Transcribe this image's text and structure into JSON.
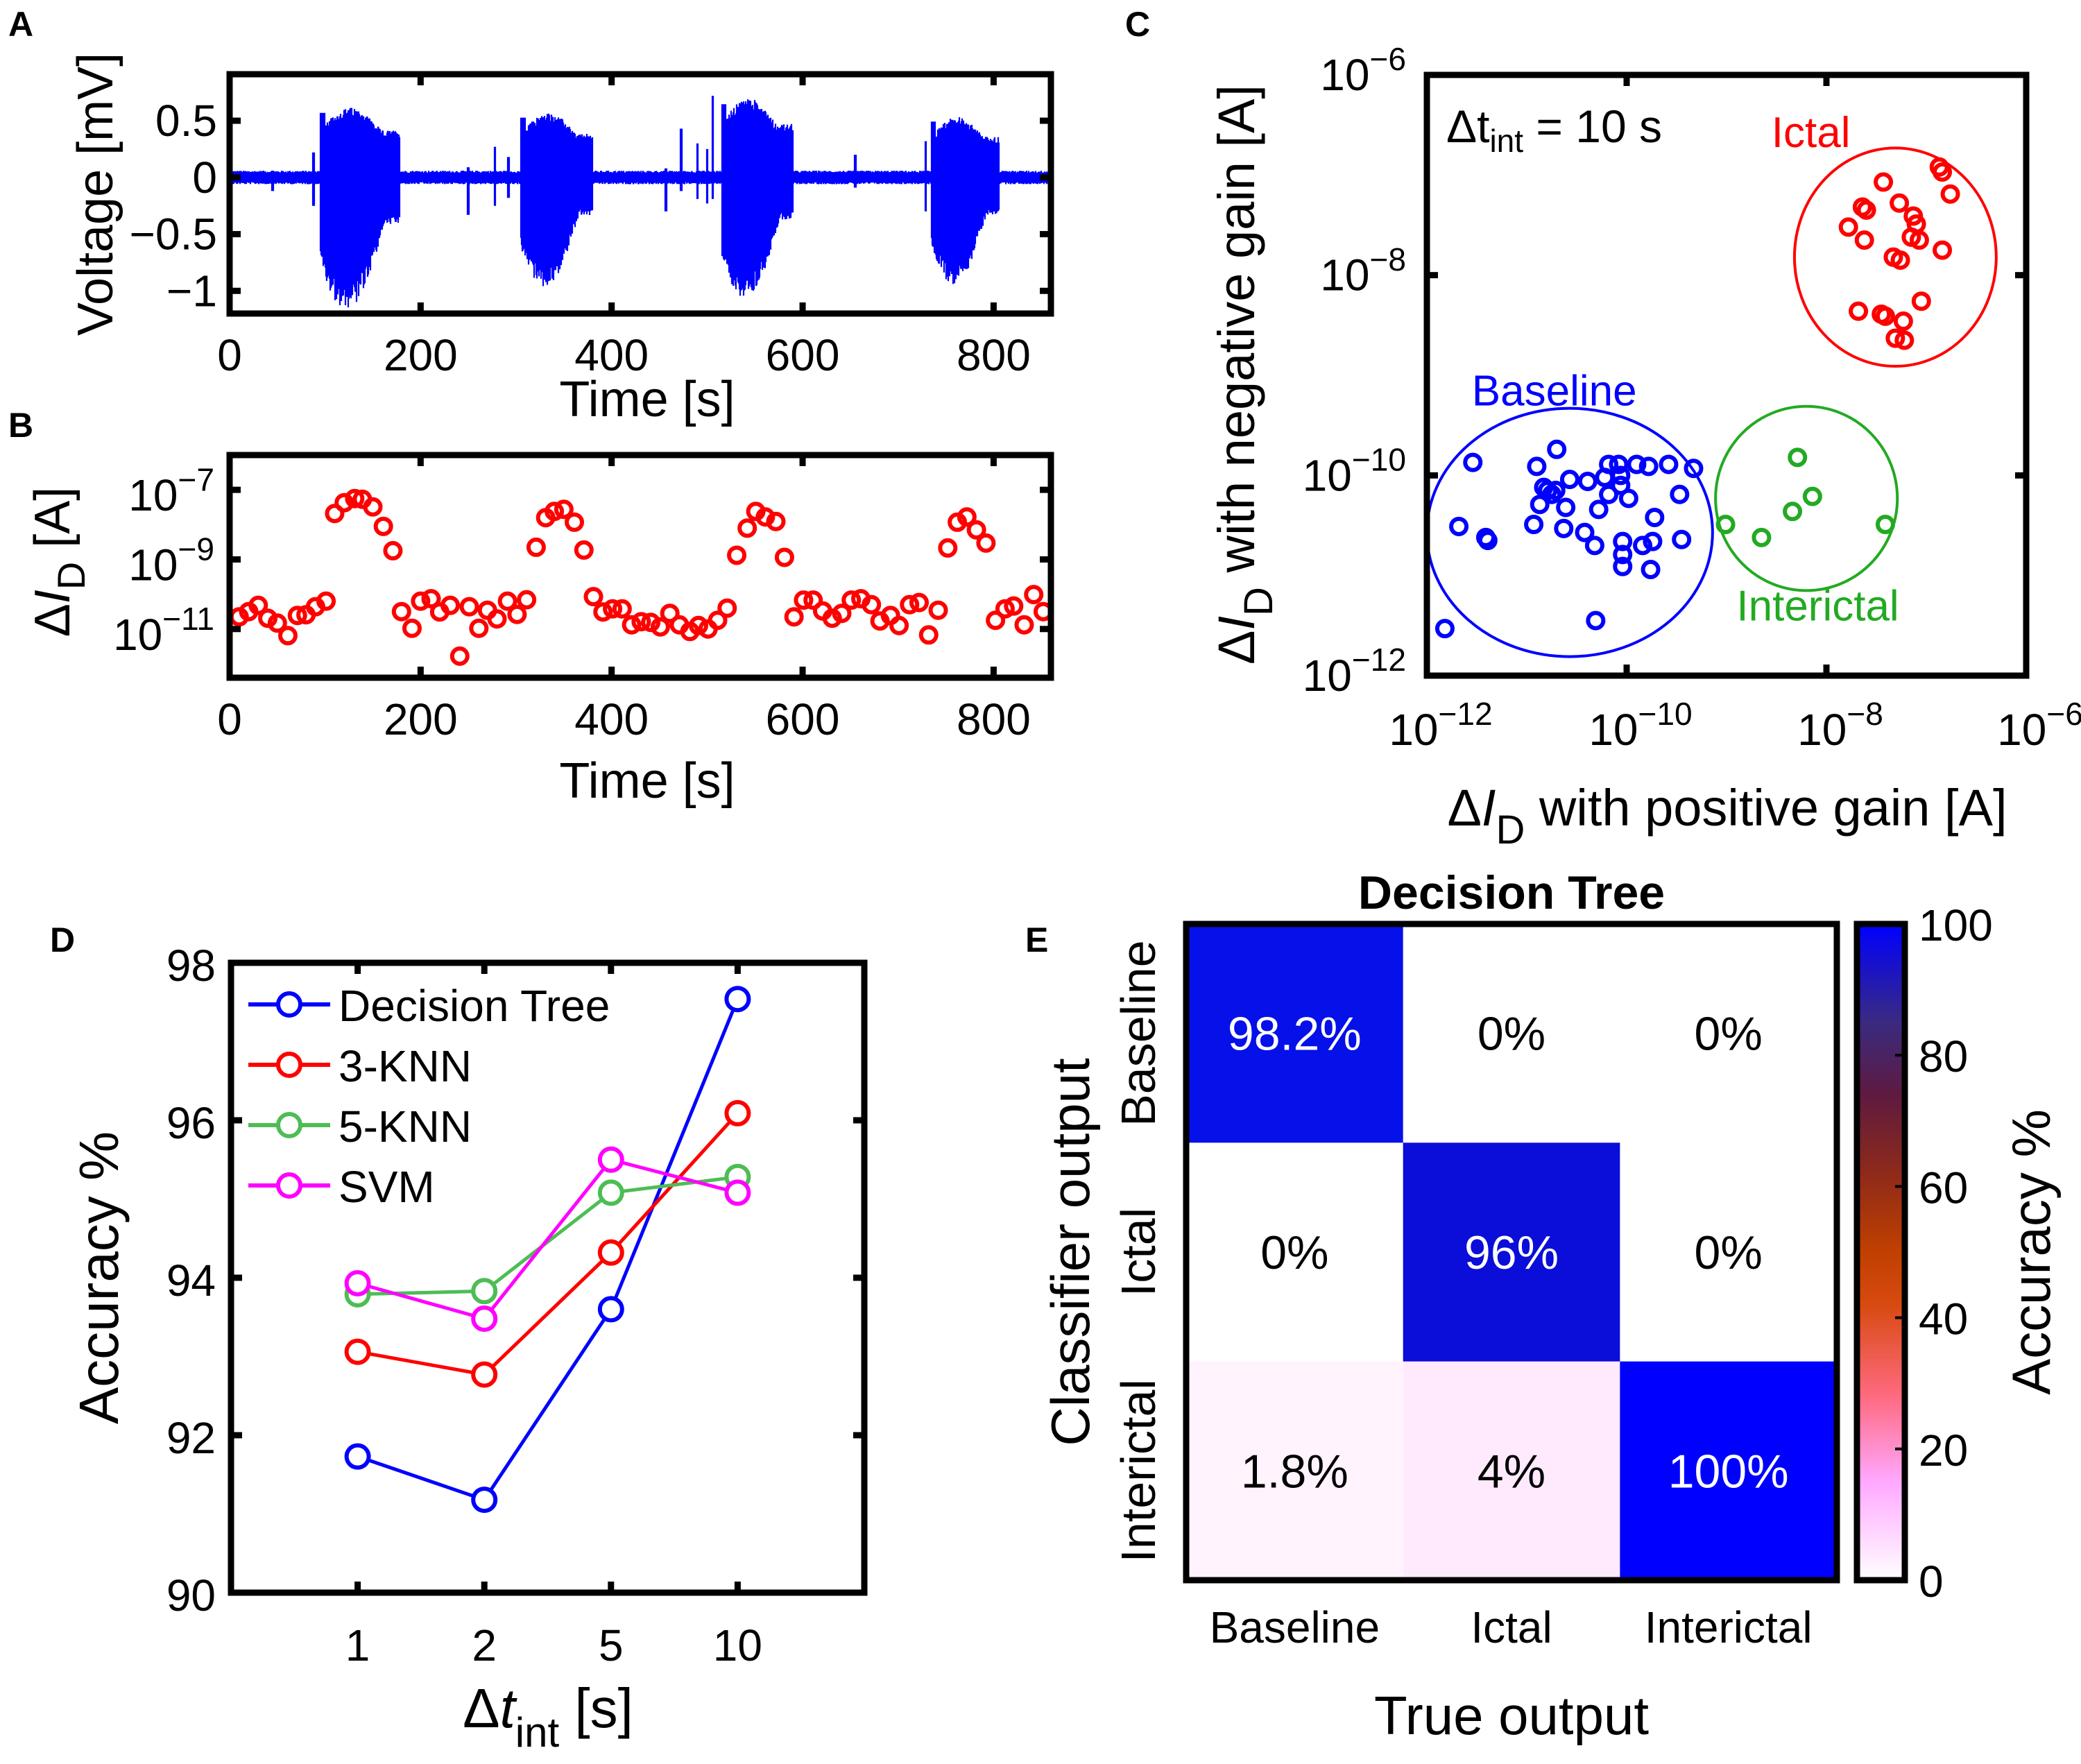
{
  "figure": {
    "panel_labels": [
      "A",
      "B",
      "C",
      "D",
      "E"
    ]
  },
  "chart_data": [
    {
      "id": "A",
      "type": "line",
      "title": "",
      "xlabel": "Time [s]",
      "ylabel": "Voltage [mV]",
      "xlim": [
        0,
        860
      ],
      "ylim": [
        -1.2,
        0.91
      ],
      "xticks": [
        0,
        200,
        400,
        600,
        800
      ],
      "xtick_labels": [
        "0",
        "200",
        "400",
        "600",
        "800"
      ],
      "yticks": [
        0.5,
        0,
        -0.5,
        -1
      ],
      "ytick_labels": [
        "0.5",
        "0",
        "−0.5",
        "−1"
      ],
      "color": "#0000ff",
      "description": "Continuous voltage trace; baseline noise ~±0.05 mV with four ictal bursts",
      "baseline_amplitude": 0.05,
      "bursts": [
        {
          "start": 95,
          "end": 178,
          "max": 0.67,
          "min": -1.12
        },
        {
          "start": 305,
          "end": 380,
          "max": 0.62,
          "min": -0.92
        },
        {
          "start": 515,
          "end": 590,
          "max": 0.76,
          "min": -1.02
        },
        {
          "start": 735,
          "end": 806,
          "max": 0.58,
          "min": -0.9
        }
      ],
      "spikes": [
        {
          "t": 45,
          "max": 0.06,
          "min": -0.12
        },
        {
          "t": 88,
          "max": 0.22,
          "min": -0.25
        },
        {
          "t": 250,
          "max": 0.09,
          "min": -0.33
        },
        {
          "t": 278,
          "max": 0.27,
          "min": -0.25
        },
        {
          "t": 292,
          "max": 0.18,
          "min": -0.18
        },
        {
          "t": 457,
          "max": 0.08,
          "min": -0.3
        },
        {
          "t": 473,
          "max": 0.43,
          "min": -0.12
        },
        {
          "t": 490,
          "max": 0.3,
          "min": -0.19
        },
        {
          "t": 500,
          "max": 0.25,
          "min": -0.23
        },
        {
          "t": 506,
          "max": 0.72,
          "min": -0.19
        },
        {
          "t": 655,
          "max": 0.2,
          "min": -0.09
        },
        {
          "t": 729,
          "max": 0.32,
          "min": -0.3
        }
      ]
    },
    {
      "id": "B",
      "type": "scatter",
      "title": "",
      "xlabel": "Time [s]",
      "ylabel": "ΔI_D [A]",
      "xlim": [
        0,
        860
      ],
      "ylim_log10": [
        -12.4,
        -6
      ],
      "xticks": [
        0,
        200,
        400,
        600,
        800
      ],
      "xtick_labels": [
        "0",
        "200",
        "400",
        "600",
        "800"
      ],
      "yticks_log10": [
        -7,
        -9,
        -11
      ],
      "ytick_labels": [
        "10−7",
        "10−9",
        "10−11"
      ],
      "marker": "open-circle",
      "color": "#ff0000",
      "x": [
        10,
        20,
        30,
        40,
        50,
        61,
        71,
        80,
        90,
        101,
        110,
        120,
        131,
        139,
        150,
        161,
        171,
        180,
        191,
        200,
        211,
        220,
        231,
        241,
        251,
        261,
        270,
        280,
        291,
        301,
        311,
        321,
        331,
        340,
        350,
        361,
        371,
        381,
        391,
        401,
        411,
        421,
        431,
        441,
        451,
        461,
        471,
        482,
        491,
        501,
        511,
        521,
        531,
        542,
        551,
        561,
        572,
        581,
        591,
        601,
        611,
        621,
        631,
        641,
        651,
        661,
        672,
        681,
        692,
        701,
        712,
        722,
        732,
        742,
        752,
        762,
        772,
        782,
        792,
        802,
        812,
        821,
        832,
        842,
        852
      ],
      "log10_y": [
        -10.65,
        -10.5,
        -10.32,
        -10.69,
        -10.83,
        -11.19,
        -10.61,
        -10.59,
        -10.36,
        -10.2,
        -7.68,
        -7.37,
        -7.25,
        -7.27,
        -7.49,
        -8.05,
        -8.75,
        -10.5,
        -10.98,
        -10.2,
        -10.13,
        -10.51,
        -10.32,
        -11.78,
        -10.36,
        -10.98,
        -10.46,
        -10.71,
        -10.2,
        -10.58,
        -10.16,
        -8.65,
        -7.8,
        -7.62,
        -7.56,
        -7.93,
        -8.73,
        -10.07,
        -10.51,
        -10.42,
        -10.42,
        -10.88,
        -10.79,
        -10.81,
        -10.94,
        -10.55,
        -10.88,
        -11.07,
        -10.9,
        -11.0,
        -10.75,
        -10.4,
        -8.88,
        -8.1,
        -7.62,
        -7.78,
        -7.91,
        -8.94,
        -10.65,
        -10.17,
        -10.17,
        -10.48,
        -10.69,
        -10.55,
        -10.17,
        -10.13,
        -10.3,
        -10.77,
        -10.61,
        -10.9,
        -10.3,
        -10.24,
        -11.17,
        -10.46,
        -8.67,
        -7.93,
        -7.78,
        -8.15,
        -8.53,
        -10.75,
        -10.42,
        -10.34,
        -10.88,
        -10.01,
        -10.5
      ]
    },
    {
      "id": "C",
      "type": "scatter",
      "title": "",
      "xlabel": "ΔI_D with positive gain [A]",
      "ylabel": "ΔI_D with negative gain [A]",
      "xlim_log10": [
        -12,
        -6
      ],
      "ylim_log10": [
        -12,
        -6
      ],
      "xticks_log10": [
        -12,
        -10,
        -8,
        -6
      ],
      "xtick_labels": [
        "10−12",
        "10−10",
        "10−8",
        "10−6"
      ],
      "yticks_log10": [
        -6,
        -8,
        -10,
        -12
      ],
      "ytick_labels": [
        "10−6",
        "10−8",
        "10−10",
        "10−12"
      ],
      "annotation": {
        "main": "Δt",
        "sub": "int",
        "rest": " = 10 s"
      },
      "series": [
        {
          "name": "Ictal",
          "color": "#ff0000",
          "label_pos_log10": [
            -8.55,
            -6.72
          ],
          "ellipse_log10": {
            "cx": -7.31,
            "cy": -7.82,
            "rx": 1.01,
            "ry": 1.09
          },
          "log10_x": [
            -7.43,
            -6.87,
            -6.84,
            -6.76,
            -7.64,
            -7.6,
            -7.27,
            -7.13,
            -7.78,
            -7.1,
            -7.62,
            -7.15,
            -7.07,
            -6.84,
            -7.33,
            -7.26,
            -7.05,
            -7.68,
            -7.45,
            -7.41,
            -7.23,
            -7.31,
            -7.22
          ],
          "log10_y": [
            -7.07,
            -6.92,
            -6.97,
            -7.19,
            -7.32,
            -7.35,
            -7.28,
            -7.41,
            -7.52,
            -7.49,
            -7.65,
            -7.62,
            -7.65,
            -7.75,
            -7.82,
            -7.85,
            -8.26,
            -8.36,
            -8.39,
            -8.41,
            -8.46,
            -8.63,
            -8.65
          ]
        },
        {
          "name": "Baseline",
          "color": "#0000ff",
          "label_pos_log10": [
            -11.55,
            -9.3
          ],
          "ellipse_log10": {
            "cx": -10.57,
            "cy": -10.57,
            "rx": 1.43,
            "ry": 1.24
          },
          "log10_x": [
            -11.54,
            -10.7,
            -10.9,
            -10.18,
            -10.08,
            -9.9,
            -9.78,
            -9.58,
            -9.33,
            -10.57,
            -10.39,
            -10.22,
            -10.06,
            -10.79,
            -10.71,
            -10.75,
            -10.06,
            -9.47,
            -10.87,
            -10.61,
            -10.28,
            -9.98,
            -10.18,
            -11.68,
            -10.93,
            -10.63,
            -10.42,
            -9.72,
            -11.41,
            -11.39,
            -10.32,
            -10.04,
            -9.74,
            -9.84,
            -9.45,
            -10.04,
            -10.04,
            -9.76,
            -11.82,
            -10.31,
            -10.83
          ],
          "log10_y": [
            -9.87,
            -9.74,
            -9.91,
            -9.89,
            -9.89,
            -9.89,
            -9.91,
            -9.89,
            -9.93,
            -10.04,
            -10.06,
            -10.02,
            -10.0,
            -10.15,
            -10.15,
            -10.19,
            -10.1,
            -10.19,
            -10.29,
            -10.32,
            -10.34,
            -10.23,
            -10.19,
            -10.51,
            -10.49,
            -10.53,
            -10.57,
            -10.42,
            -10.62,
            -10.65,
            -10.7,
            -10.66,
            -10.66,
            -10.7,
            -10.64,
            -10.79,
            -10.91,
            -10.94,
            -11.53,
            -11.45,
            -10.12
          ]
        },
        {
          "name": "Interictal",
          "color": "#22aa22",
          "label_pos_log10": [
            -8.9,
            -11.45
          ],
          "ellipse_log10": {
            "cx": -8.2,
            "cy": -10.23,
            "rx": 0.91,
            "ry": 0.92
          },
          "log10_x": [
            -8.29,
            -8.14,
            -8.34,
            -9.01,
            -8.65,
            -7.41
          ],
          "log10_y": [
            -9.82,
            -10.21,
            -10.36,
            -10.49,
            -10.62,
            -10.49
          ]
        }
      ]
    },
    {
      "id": "D",
      "type": "line",
      "title": "",
      "xlabel_main": "Δt",
      "xlabel_sub": "int",
      "xlabel_rest": " [s]",
      "ylabel": "Accuracy %",
      "categories": [
        "1",
        "2",
        "5",
        "10"
      ],
      "xlim": [
        0,
        5
      ],
      "ylim": [
        90,
        98
      ],
      "yticks": [
        90,
        92,
        94,
        96,
        98
      ],
      "ytick_labels": [
        "90",
        "92",
        "94",
        "96",
        "98"
      ],
      "legend_position": "top-left",
      "series": [
        {
          "name": "Decision Tree",
          "color": "#0000ff",
          "values": [
            91.73,
            91.18,
            93.6,
            97.54
          ]
        },
        {
          "name": "3-KNN",
          "color": "#ff0000",
          "values": [
            93.06,
            92.77,
            94.32,
            96.09
          ]
        },
        {
          "name": "5-KNN",
          "color": "#4dbd55",
          "values": [
            93.79,
            93.83,
            95.08,
            95.28
          ]
        },
        {
          "name": "SVM",
          "color": "#ff00ff",
          "values": [
            93.93,
            93.48,
            95.5,
            95.08
          ]
        }
      ]
    },
    {
      "id": "E",
      "type": "heatmap",
      "title": "Decision Tree",
      "xlabel": "True output",
      "ylabel": "Classifier output",
      "x_categories": [
        "Baseline",
        "Ictal",
        "Interictal"
      ],
      "y_categories": [
        "Baseline",
        "Ictal",
        "Interictal"
      ],
      "values": [
        [
          98.2,
          0,
          0
        ],
        [
          0,
          96,
          0
        ],
        [
          1.8,
          4,
          100
        ]
      ],
      "cell_labels": [
        [
          "98.2%",
          "0%",
          "0%"
        ],
        [
          "0%",
          "96%",
          "0%"
        ],
        [
          "1.8%",
          "4%",
          "100%"
        ]
      ],
      "cell_colors": [
        [
          "#0610e8",
          "#ffffff",
          "#ffffff"
        ],
        [
          "#ffffff",
          "#0a0ed8",
          "#ffffff"
        ],
        [
          "#fff4fd",
          "#ffeafd",
          "#0000ff"
        ]
      ],
      "colorbar": {
        "label": "Accuracy %",
        "range": [
          0,
          100
        ],
        "ticks": [
          0,
          20,
          40,
          60,
          80,
          100
        ],
        "tick_labels": [
          "0",
          "20",
          "40",
          "60",
          "80",
          "100"
        ],
        "stops": [
          {
            "v": 0,
            "color": "#ffffff"
          },
          {
            "v": 15,
            "color": "#ffa8ff"
          },
          {
            "v": 28,
            "color": "#ff6a80"
          },
          {
            "v": 42,
            "color": "#d84a10"
          },
          {
            "v": 50,
            "color": "#c04000"
          },
          {
            "v": 62,
            "color": "#8e2a1a"
          },
          {
            "v": 74,
            "color": "#5e1a40"
          },
          {
            "v": 85,
            "color": "#3a2a80"
          },
          {
            "v": 100,
            "color": "#0000ff"
          }
        ]
      }
    }
  ]
}
